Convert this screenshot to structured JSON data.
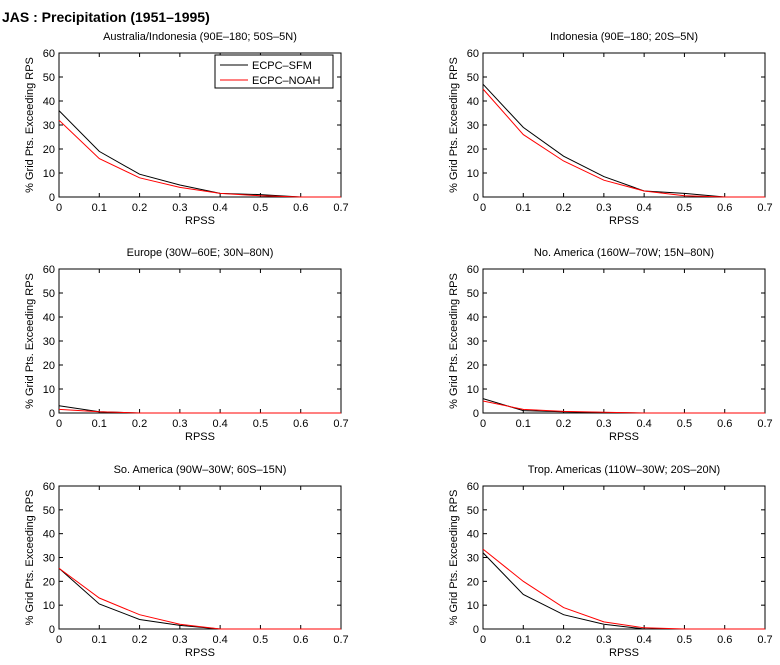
{
  "figure_title": "JAS : Precipitation (1951–1995)",
  "chart_data": [
    {
      "type": "line",
      "title": "Australia/Indonesia (90E–180; 50S–5N)",
      "xlabel": "RPSS",
      "ylabel": "% Grid Pts. Exceeding RPS",
      "xlim": [
        0,
        0.7
      ],
      "ylim": [
        0,
        60
      ],
      "xticks": [
        "0",
        "0.1",
        "0.2",
        "0.3",
        "0.4",
        "0.5",
        "0.6",
        "0.7"
      ],
      "yticks": [
        "0",
        "10",
        "20",
        "30",
        "40",
        "50",
        "60"
      ],
      "x": [
        0,
        0.1,
        0.2,
        0.3,
        0.4,
        0.5,
        0.6,
        0.7
      ],
      "legend": {
        "position": "top-right"
      },
      "series": [
        {
          "name": "ECPC–SFM",
          "color": "#000000",
          "values": [
            36,
            19,
            9.5,
            5,
            1.5,
            1,
            0,
            0
          ]
        },
        {
          "name": "ECPC–NOAH",
          "color": "#ff0000",
          "values": [
            32,
            16,
            8,
            4,
            1.5,
            0.5,
            0,
            0
          ]
        }
      ]
    },
    {
      "type": "line",
      "title": "Indonesia (90E–180; 20S–5N)",
      "xlabel": "RPSS",
      "ylabel": "% Grid Pts. Exceeding RPS",
      "xlim": [
        0,
        0.7
      ],
      "ylim": [
        0,
        60
      ],
      "xticks": [
        "0",
        "0.1",
        "0.2",
        "0.3",
        "0.4",
        "0.5",
        "0.6",
        "0.7"
      ],
      "yticks": [
        "0",
        "10",
        "20",
        "30",
        "40",
        "50",
        "60"
      ],
      "x": [
        0,
        0.1,
        0.2,
        0.3,
        0.4,
        0.5,
        0.6,
        0.7
      ],
      "series": [
        {
          "color": "#000000",
          "values": [
            47,
            29,
            17,
            8.5,
            2.5,
            1.5,
            0,
            0
          ]
        },
        {
          "color": "#ff0000",
          "values": [
            45,
            26,
            15,
            7,
            2.5,
            0.5,
            0,
            0
          ]
        }
      ]
    },
    {
      "type": "line",
      "title": "Europe (30W–60E; 30N–80N)",
      "xlabel": "RPSS",
      "ylabel": "% Grid Pts. Exceeding RPS",
      "xlim": [
        0,
        0.7
      ],
      "ylim": [
        0,
        60
      ],
      "xticks": [
        "0",
        "0.1",
        "0.2",
        "0.3",
        "0.4",
        "0.5",
        "0.6",
        "0.7"
      ],
      "yticks": [
        "0",
        "10",
        "20",
        "30",
        "40",
        "50",
        "60"
      ],
      "x": [
        0,
        0.1,
        0.2,
        0.3,
        0.4,
        0.5,
        0.6,
        0.7
      ],
      "series": [
        {
          "color": "#000000",
          "values": [
            3,
            0.5,
            0,
            0,
            0,
            0,
            0,
            0
          ]
        },
        {
          "color": "#ff0000",
          "values": [
            1.5,
            0.5,
            0,
            0,
            0,
            0,
            0,
            0
          ]
        }
      ]
    },
    {
      "type": "line",
      "title": "No. America (160W–70W; 15N–80N)",
      "xlabel": "RPSS",
      "ylabel": "% Grid Pts. Exceeding RPS",
      "xlim": [
        0,
        0.7
      ],
      "ylim": [
        0,
        60
      ],
      "xticks": [
        "0",
        "0.1",
        "0.2",
        "0.3",
        "0.4",
        "0.5",
        "0.6",
        "0.7"
      ],
      "yticks": [
        "0",
        "10",
        "20",
        "30",
        "40",
        "50",
        "60"
      ],
      "x": [
        0,
        0.1,
        0.2,
        0.3,
        0.4,
        0.5,
        0.6,
        0.7
      ],
      "series": [
        {
          "color": "#000000",
          "values": [
            6,
            1,
            0.5,
            0.2,
            0,
            0,
            0,
            0
          ]
        },
        {
          "color": "#ff0000",
          "values": [
            5,
            1.5,
            0.7,
            0.3,
            0,
            0,
            0,
            0
          ]
        }
      ]
    },
    {
      "type": "line",
      "title": "So. America (90W–30W; 60S–15N)",
      "xlabel": "RPSS",
      "ylabel": "% Grid Pts. Exceeding RPS",
      "xlim": [
        0,
        0.7
      ],
      "ylim": [
        0,
        60
      ],
      "xticks": [
        "0",
        "0.1",
        "0.2",
        "0.3",
        "0.4",
        "0.5",
        "0.6",
        "0.7"
      ],
      "yticks": [
        "0",
        "10",
        "20",
        "30",
        "40",
        "50",
        "60"
      ],
      "x": [
        0,
        0.1,
        0.2,
        0.3,
        0.4,
        0.5,
        0.6,
        0.7
      ],
      "series": [
        {
          "color": "#000000",
          "values": [
            25.5,
            10.5,
            4,
            1.5,
            0,
            0,
            0,
            0
          ]
        },
        {
          "color": "#ff0000",
          "values": [
            25.5,
            13,
            6,
            2,
            0,
            0,
            0,
            0
          ]
        }
      ]
    },
    {
      "type": "line",
      "title": "Trop. Americas (110W–30W; 20S–20N)",
      "xlabel": "RPSS",
      "ylabel": "% Grid Pts. Exceeding RPS",
      "xlim": [
        0,
        0.7
      ],
      "ylim": [
        0,
        60
      ],
      "xticks": [
        "0",
        "0.1",
        "0.2",
        "0.3",
        "0.4",
        "0.5",
        "0.6",
        "0.7"
      ],
      "yticks": [
        "0",
        "10",
        "20",
        "30",
        "40",
        "50",
        "60"
      ],
      "x": [
        0,
        0.1,
        0.2,
        0.3,
        0.4,
        0.5,
        0.6,
        0.7
      ],
      "series": [
        {
          "color": "#000000",
          "values": [
            32,
            14.5,
            6,
            2,
            0,
            0,
            0,
            0
          ]
        },
        {
          "color": "#ff0000",
          "values": [
            33.5,
            20,
            9,
            3,
            0.5,
            0,
            0,
            0
          ]
        }
      ]
    }
  ]
}
